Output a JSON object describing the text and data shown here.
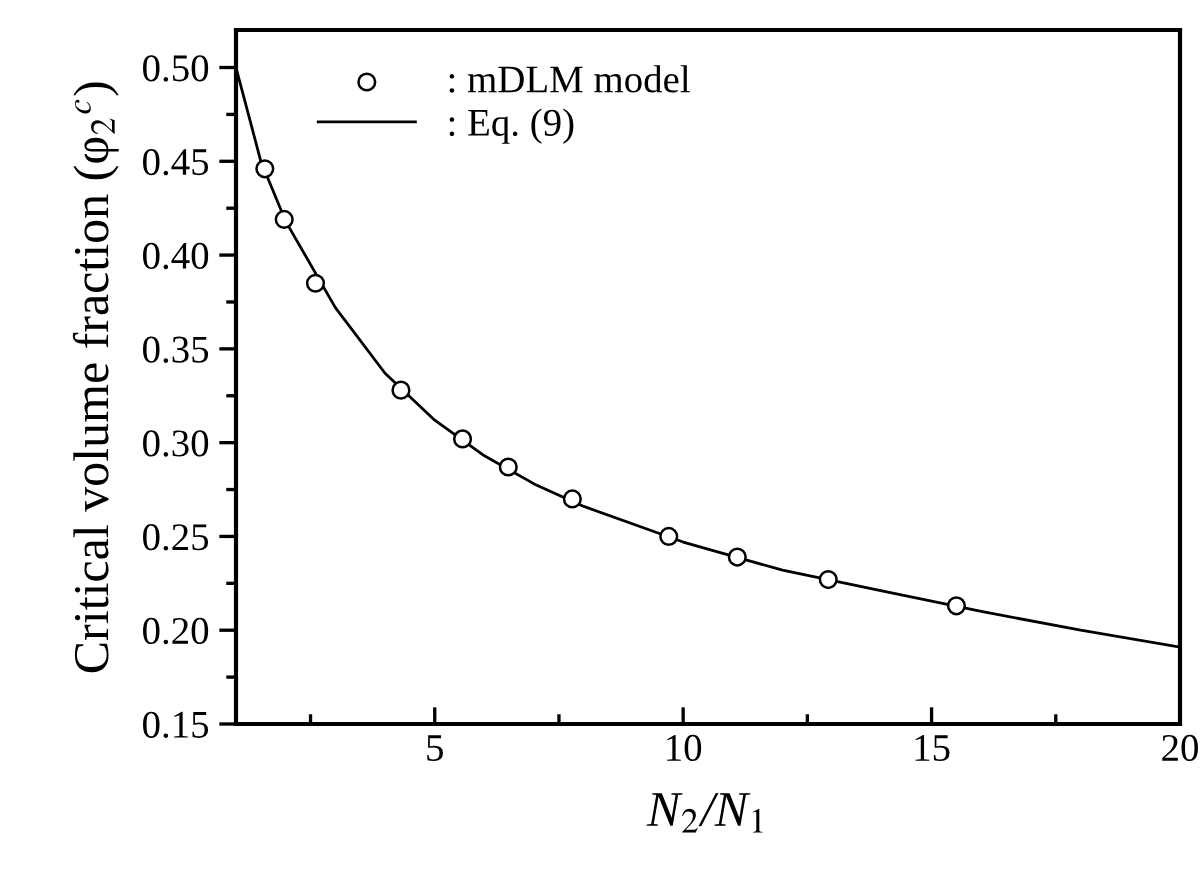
{
  "chart_data": {
    "type": "scatter",
    "xlabel": "N$_{2}$/N$_{1}$",
    "ylabel": "Critical volume fraction (φ$_{2}$$^{c}$)",
    "series": [
      {
        "name": ": mDLM model",
        "color": "#000000",
        "marker": "circle",
        "x": [
          1.58,
          1.97,
          2.6,
          4.32,
          5.56,
          6.48,
          7.77,
          9.71,
          11.09,
          12.92,
          15.5
        ],
        "values": [
          0.446,
          0.419,
          0.385,
          0.328,
          0.302,
          0.287,
          0.27,
          0.25,
          0.239,
          0.227,
          0.213
        ]
      },
      {
        "name": ": Eq. (9)",
        "type": "line",
        "color": "#000000",
        "line_style": "solid",
        "marker": "none",
        "x": [
          1,
          1.5,
          2,
          3,
          4,
          5,
          6,
          7,
          8,
          10,
          12,
          14,
          16,
          18,
          20
        ],
        "values": [
          0.5,
          0.45,
          0.418,
          0.372,
          0.337,
          0.312,
          0.293,
          0.278,
          0.266,
          0.247,
          0.232,
          0.221,
          0.21,
          0.2,
          0.191
        ]
      }
    ],
    "xlim": [
      1,
      20
    ],
    "ylim": [
      0.15,
      0.52
    ],
    "xticks": [
      {
        "value": 2.5,
        "label": null
      },
      5,
      {
        "value": 7.5,
        "label": null
      },
      10,
      {
        "value": 12.5,
        "label": null
      },
      15,
      {
        "value": 17.5,
        "label": null
      },
      20
    ],
    "yticks": [
      {
        "value": 0.15,
        "label": "0.15"
      },
      {
        "value": 0.175,
        "label": null
      },
      {
        "value": 0.2,
        "label": "0.20"
      },
      {
        "value": 0.225,
        "label": null
      },
      {
        "value": 0.25,
        "label": "0.25"
      },
      {
        "value": 0.275,
        "label": null
      },
      {
        "value": 0.3,
        "label": "0.30"
      },
      {
        "value": 0.325,
        "label": null
      },
      {
        "value": 0.35,
        "label": "0.35"
      },
      {
        "value": 0.375,
        "label": null
      },
      {
        "value": 0.4,
        "label": "0.40"
      },
      {
        "value": 0.425,
        "label": null
      },
      {
        "value": 0.45,
        "label": "0.45"
      },
      {
        "value": 0.475,
        "label": null
      },
      {
        "value": 0.5,
        "label": "0.50"
      }
    ],
    "grid": false,
    "legend": "top left"
  }
}
